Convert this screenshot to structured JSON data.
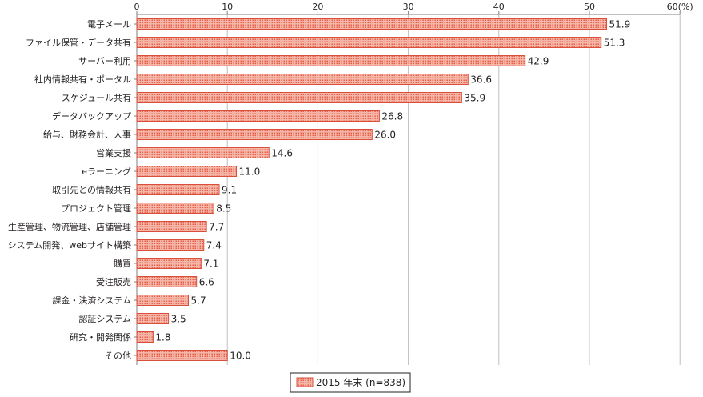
{
  "chart_data": {
    "type": "bar",
    "orientation": "horizontal",
    "categories": [
      "電子メール",
      "ファイル保管・データ共有",
      "サーバー利用",
      "社内情報共有・ポータル",
      "スケジュール共有",
      "データバックアップ",
      "給与、財務会計、人事",
      "営業支援",
      "eラーニング",
      "取引先との情報共有",
      "プロジェクト管理",
      "生産管理、物流管理、店舗管理",
      "システム開発、webサイト構築",
      "購買",
      "受注販売",
      "課金・決済システム",
      "認証システム",
      "研究・開発関係",
      "その他"
    ],
    "series": [
      {
        "name": "2015 年末 (n=838)",
        "values": [
          51.9,
          51.3,
          42.9,
          36.6,
          35.9,
          26.8,
          26.0,
          14.6,
          11.0,
          9.1,
          8.5,
          7.7,
          7.4,
          7.1,
          6.6,
          5.7,
          3.5,
          1.8,
          10.0
        ],
        "labels": [
          "51.9",
          "51.3",
          "42.9",
          "36.6",
          "35.9",
          "26.8",
          "26.0",
          "14.6",
          "11.0",
          "9.1",
          "8.5",
          "7.7",
          "7.4",
          "7.1",
          "6.6",
          "5.7",
          "3.5",
          "1.8",
          "10.0"
        ]
      }
    ],
    "xlim": [
      0,
      60
    ],
    "ticks": [
      "0",
      "10",
      "20",
      "30",
      "40",
      "50",
      "60(%)"
    ],
    "grid": true,
    "legend_position": "bottom-center",
    "colors": {
      "bar_fill": "#f4b6a8",
      "bar_dot": "#e8604a",
      "bar_stroke": "#d94f3a",
      "grid": "#bfbfbf",
      "axis": "#7f7f7f"
    }
  }
}
